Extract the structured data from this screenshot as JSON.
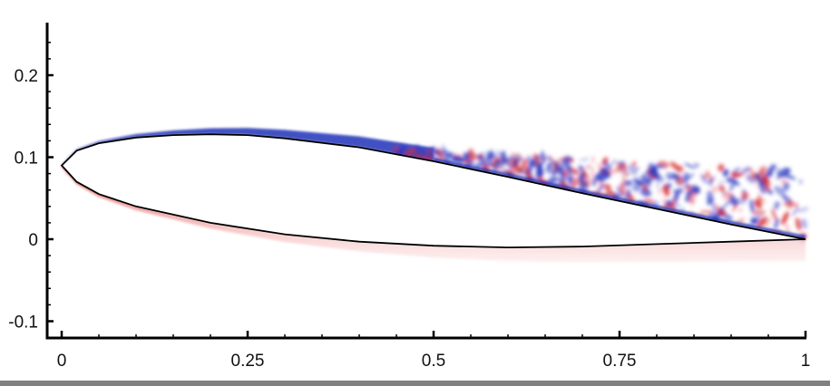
{
  "chart_data": {
    "type": "heatmap",
    "title": "",
    "description": "Vorticity contour field around an airfoil (blue = negative/clockwise, red = positive) with separated turbulent flow on the upper aft surface",
    "xlabel": "",
    "ylabel": "",
    "xlim": [
      -0.02,
      1.0
    ],
    "ylim": [
      -0.12,
      0.26
    ],
    "x_ticks": [
      0,
      0.25,
      0.5,
      0.75,
      1
    ],
    "x_tick_labels": [
      "0",
      "0.25",
      "0.5",
      "0.75",
      "1"
    ],
    "x_minor_step": 0.05,
    "y_ticks": [
      -0.1,
      0,
      0.1,
      0.2
    ],
    "y_tick_labels": [
      "-0.1",
      "0",
      "0.1",
      "0.2"
    ],
    "y_minor_step": 0.02,
    "grid": false,
    "legend": "none",
    "colormap": {
      "negative": "#1f2fb8",
      "neutral": "#ffffff",
      "positive": "#d81e1e"
    },
    "airfoil": {
      "leading_edge": [
        0.0,
        0.09
      ],
      "trailing_edge": [
        1.0,
        0.0
      ],
      "upper_surface": [
        [
          0.0,
          0.09
        ],
        [
          0.02,
          0.108
        ],
        [
          0.05,
          0.117
        ],
        [
          0.1,
          0.124
        ],
        [
          0.15,
          0.127
        ],
        [
          0.2,
          0.128
        ],
        [
          0.25,
          0.127
        ],
        [
          0.3,
          0.123
        ],
        [
          0.4,
          0.112
        ],
        [
          0.5,
          0.095
        ],
        [
          0.6,
          0.076
        ],
        [
          0.7,
          0.056
        ],
        [
          0.8,
          0.037
        ],
        [
          0.9,
          0.018
        ],
        [
          1.0,
          0.0
        ]
      ],
      "lower_surface": [
        [
          0.0,
          0.09
        ],
        [
          0.02,
          0.07
        ],
        [
          0.05,
          0.055
        ],
        [
          0.1,
          0.04
        ],
        [
          0.2,
          0.02
        ],
        [
          0.3,
          0.006
        ],
        [
          0.4,
          -0.003
        ],
        [
          0.5,
          -0.008
        ],
        [
          0.6,
          -0.01
        ],
        [
          0.7,
          -0.009
        ],
        [
          0.8,
          -0.006
        ],
        [
          0.9,
          -0.003
        ],
        [
          1.0,
          0.0
        ]
      ]
    },
    "features": {
      "upper_laminar_layer": "blue shear layer from leading edge to x≈0.45",
      "separation_onset_x": 0.45,
      "turbulent_wake_region": [
        0.45,
        1.0
      ],
      "lower_layer": "red shear layer along the lower surface, thickening into the wake band near y≈-0.01 to -0.02"
    }
  }
}
